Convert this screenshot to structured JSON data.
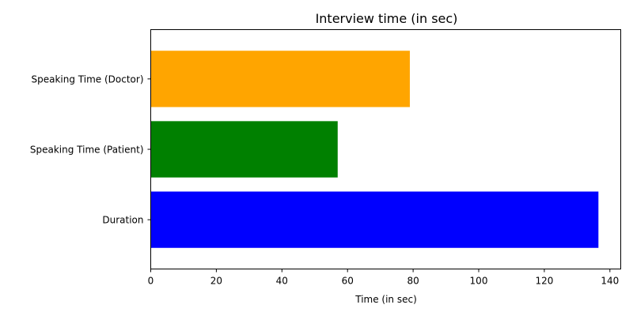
{
  "chart_data": {
    "type": "bar",
    "orientation": "horizontal",
    "title": "Interview time (in sec)",
    "xlabel": "Time (in sec)",
    "ylabel": "",
    "categories": [
      "Speaking Time (Doctor)",
      "Speaking Time (Patient)",
      "Duration"
    ],
    "values": [
      79,
      57,
      136.5
    ],
    "colors": [
      "#ffa500",
      "#008000",
      "#0000ff"
    ],
    "xlim": [
      0,
      143.3
    ],
    "xticks": [
      0,
      20,
      40,
      60,
      80,
      100,
      120,
      140
    ],
    "grid": false,
    "legend": "none"
  }
}
